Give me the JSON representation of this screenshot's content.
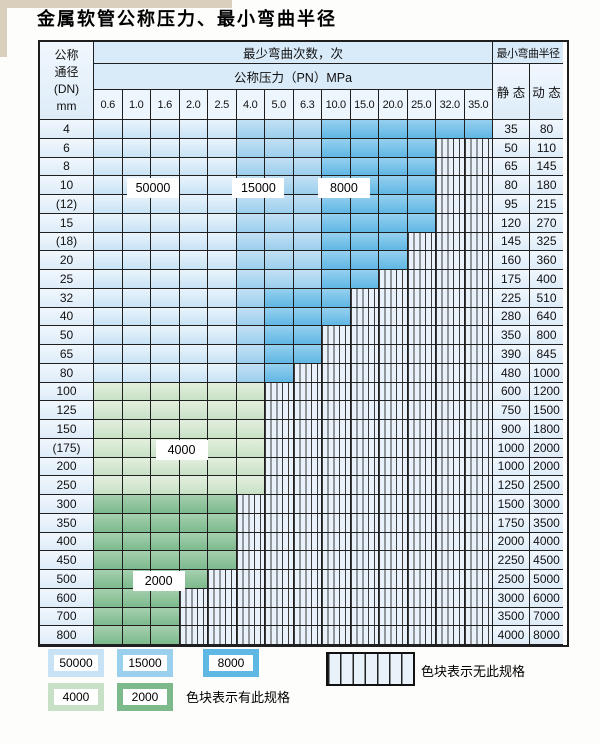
{
  "title": "金属软管公称压力、最小弯曲半径",
  "colors": {
    "page_bg": "#fdfdfb",
    "beige": "#d9cfbc",
    "border": "#1f1f1f",
    "header_bg": "#d9eaf8",
    "numrow_bg": "#eef6fd",
    "plain_top": "#f1f7fd",
    "plain_bot": "#ddecf8",
    "hatch_bg": "#e9f2fa",
    "hatch_line": "#3c3c3c",
    "c50000_top": "#eaf4fc",
    "c50000_bot": "#c8e3f5",
    "c15000_top": "#c3e0f4",
    "c15000_bot": "#9bcfee",
    "c8000_top": "#96d0ef",
    "c8000_bot": "#5fb7e4",
    "c4000_top": "#e3efde",
    "c4000_bot": "#c8e1c6",
    "c2000_top": "#a6d0af",
    "c2000_bot": "#7cba8c"
  },
  "table": {
    "corner_header": [
      "公称",
      "通径",
      "(DN)",
      "mm"
    ],
    "cycles_header": "最少弯曲次数，次",
    "pressure_header": "公称压力（PN）MPa",
    "radius_header": "最小弯曲半径",
    "static_label": "静 态",
    "dynamic_label": "动 态",
    "pressures": [
      "0.6",
      "1.0",
      "1.6",
      "2.0",
      "2.5",
      "4.0",
      "5.0",
      "6.3",
      "10.0",
      "15.0",
      "20.0",
      "25.0",
      "32.0",
      "35.0"
    ],
    "rows": [
      {
        "dn": "4",
        "zones": [
          [
            "c50000",
            5
          ],
          [
            "c15000",
            3
          ],
          [
            "c8000",
            6
          ]
        ],
        "static": "35",
        "dynamic": "80"
      },
      {
        "dn": "6",
        "zones": [
          [
            "c50000",
            5
          ],
          [
            "c15000",
            3
          ],
          [
            "c8000",
            4
          ]
        ],
        "static": "50",
        "dynamic": "110"
      },
      {
        "dn": "8",
        "zones": [
          [
            "c50000",
            5
          ],
          [
            "c15000",
            3
          ],
          [
            "c8000",
            4
          ]
        ],
        "static": "65",
        "dynamic": "145"
      },
      {
        "dn": "10",
        "zones": [
          [
            "c50000",
            5
          ],
          [
            "c15000",
            3
          ],
          [
            "c8000",
            4
          ]
        ],
        "static": "80",
        "dynamic": "180"
      },
      {
        "dn": "(12)",
        "zones": [
          [
            "c50000",
            5
          ],
          [
            "c15000",
            3
          ],
          [
            "c8000",
            4
          ]
        ],
        "static": "95",
        "dynamic": "215"
      },
      {
        "dn": "15",
        "zones": [
          [
            "c50000",
            5
          ],
          [
            "c15000",
            3
          ],
          [
            "c8000",
            4
          ]
        ],
        "static": "120",
        "dynamic": "270"
      },
      {
        "dn": "(18)",
        "zones": [
          [
            "c50000",
            5
          ],
          [
            "c15000",
            3
          ],
          [
            "c8000",
            3
          ]
        ],
        "static": "145",
        "dynamic": "325"
      },
      {
        "dn": "20",
        "zones": [
          [
            "c50000",
            5
          ],
          [
            "c15000",
            3
          ],
          [
            "c8000",
            3
          ]
        ],
        "static": "160",
        "dynamic": "360"
      },
      {
        "dn": "25",
        "zones": [
          [
            "c50000",
            5
          ],
          [
            "c15000",
            3
          ],
          [
            "c8000",
            2
          ]
        ],
        "static": "175",
        "dynamic": "400"
      },
      {
        "dn": "32",
        "zones": [
          [
            "c50000",
            5
          ],
          [
            "c15000",
            1
          ],
          [
            "c8000",
            3
          ]
        ],
        "static": "225",
        "dynamic": "510"
      },
      {
        "dn": "40",
        "zones": [
          [
            "c50000",
            5
          ],
          [
            "c15000",
            1
          ],
          [
            "c8000",
            3
          ]
        ],
        "static": "280",
        "dynamic": "640"
      },
      {
        "dn": "50",
        "zones": [
          [
            "c50000",
            5
          ],
          [
            "c15000",
            1
          ],
          [
            "c8000",
            2
          ]
        ],
        "static": "350",
        "dynamic": "800"
      },
      {
        "dn": "65",
        "zones": [
          [
            "c50000",
            5
          ],
          [
            "c15000",
            1
          ],
          [
            "c8000",
            2
          ]
        ],
        "static": "390",
        "dynamic": "845"
      },
      {
        "dn": "80",
        "zones": [
          [
            "c50000",
            5
          ],
          [
            "c15000",
            1
          ],
          [
            "c8000",
            1
          ]
        ],
        "static": "480",
        "dynamic": "1000"
      },
      {
        "dn": "100",
        "zones": [
          [
            "c4000",
            6
          ]
        ],
        "static": "600",
        "dynamic": "1200"
      },
      {
        "dn": "125",
        "zones": [
          [
            "c4000",
            6
          ]
        ],
        "static": "750",
        "dynamic": "1500"
      },
      {
        "dn": "150",
        "zones": [
          [
            "c4000",
            6
          ]
        ],
        "static": "900",
        "dynamic": "1800"
      },
      {
        "dn": "(175)",
        "zones": [
          [
            "c4000",
            6
          ]
        ],
        "static": "1000",
        "dynamic": "2000"
      },
      {
        "dn": "200",
        "zones": [
          [
            "c4000",
            6
          ]
        ],
        "static": "1000",
        "dynamic": "2000"
      },
      {
        "dn": "250",
        "zones": [
          [
            "c4000",
            6
          ]
        ],
        "static": "1250",
        "dynamic": "2500"
      },
      {
        "dn": "300",
        "zones": [
          [
            "c2000",
            5
          ]
        ],
        "static": "1500",
        "dynamic": "3000"
      },
      {
        "dn": "350",
        "zones": [
          [
            "c2000",
            5
          ]
        ],
        "static": "1750",
        "dynamic": "3500"
      },
      {
        "dn": "400",
        "zones": [
          [
            "c2000",
            5
          ]
        ],
        "static": "2000",
        "dynamic": "4000"
      },
      {
        "dn": "450",
        "zones": [
          [
            "c2000",
            5
          ]
        ],
        "static": "2250",
        "dynamic": "4500"
      },
      {
        "dn": "500",
        "zones": [
          [
            "c2000",
            4
          ]
        ],
        "static": "2500",
        "dynamic": "5000"
      },
      {
        "dn": "600",
        "zones": [
          [
            "c2000",
            3
          ]
        ],
        "static": "3000",
        "dynamic": "6000"
      },
      {
        "dn": "700",
        "zones": [
          [
            "c2000",
            3
          ]
        ],
        "static": "3500",
        "dynamic": "7000"
      },
      {
        "dn": "800",
        "zones": [
          [
            "c2000",
            3
          ]
        ],
        "static": "4000",
        "dynamic": "8000"
      }
    ]
  },
  "overlay_labels": [
    {
      "text": "50000",
      "col": 2.0,
      "row": 3.5
    },
    {
      "text": "15000",
      "col": 5.7,
      "row": 3.5
    },
    {
      "text": "8000",
      "col": 8.7,
      "row": 3.5
    },
    {
      "text": "4000",
      "col": 3.0,
      "row": 17.5
    },
    {
      "text": "2000",
      "col": 2.2,
      "row": 24.5
    }
  ],
  "legend": {
    "rows": [
      [
        {
          "label": "50000",
          "key": "c50000"
        },
        {
          "label": "15000",
          "key": "c15000"
        },
        {
          "label": "8000",
          "key": "c8000"
        }
      ],
      [
        {
          "label": "4000",
          "key": "c4000"
        },
        {
          "label": "2000",
          "key": "c2000"
        }
      ]
    ],
    "has_spec_text": "色块表示有此规格",
    "no_spec_text": "色块表示无此规格"
  }
}
